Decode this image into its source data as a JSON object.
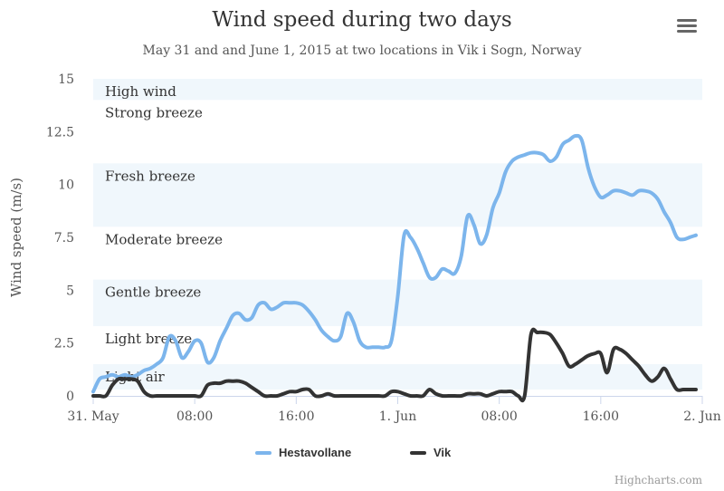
{
  "header": {
    "title": "Wind speed during two days",
    "subtitle": "May 31 and and June 1, 2015 at two locations in Vik i Sogn, Norway",
    "menu_icon": "hamburger-menu-icon"
  },
  "credits": "Highcharts.com",
  "colors": {
    "hestavollane": "#7cb5ec",
    "vik": "#333333",
    "band": "#f0f7fc",
    "axis": "#ccd6eb",
    "text": "#333333",
    "label": "#555555"
  },
  "chart_data": {
    "type": "line",
    "title": "Wind speed during two days",
    "subtitle": "May 31 and and June 1, 2015 at two locations in Vik i Sogn, Norway",
    "xlabel": "",
    "ylabel": "Wind speed (m/s)",
    "x_unit": "hours since 31. May 00:00",
    "xlim": [
      0,
      48
    ],
    "ylim": [
      0,
      15
    ],
    "xticks": [
      {
        "x": 0,
        "label": "31. May"
      },
      {
        "x": 8,
        "label": "08:00"
      },
      {
        "x": 16,
        "label": "16:00"
      },
      {
        "x": 24,
        "label": "1. Jun"
      },
      {
        "x": 32,
        "label": "08:00"
      },
      {
        "x": 40,
        "label": "16:00"
      },
      {
        "x": 48,
        "label": "2. Jun"
      }
    ],
    "yticks": [
      {
        "y": 0,
        "label": "0"
      },
      {
        "y": 2.5,
        "label": "2.5"
      },
      {
        "y": 5,
        "label": "5"
      },
      {
        "y": 7.5,
        "label": "7.5"
      },
      {
        "y": 10,
        "label": "10"
      },
      {
        "y": 12.5,
        "label": "12.5"
      },
      {
        "y": 15,
        "label": "15"
      }
    ],
    "bands": [
      {
        "from": 0.3,
        "to": 1.5,
        "label": "Light air",
        "shaded": true
      },
      {
        "from": 1.5,
        "to": 3.3,
        "label": "Light breeze",
        "shaded": false
      },
      {
        "from": 3.3,
        "to": 5.5,
        "label": "Gentle breeze",
        "shaded": true
      },
      {
        "from": 5.5,
        "to": 8,
        "label": "Moderate breeze",
        "shaded": false
      },
      {
        "from": 8,
        "to": 11,
        "label": "Fresh breeze",
        "shaded": true
      },
      {
        "from": 11,
        "to": 14,
        "label": "Strong breeze",
        "shaded": false
      },
      {
        "from": 14,
        "to": 15,
        "label": "High wind",
        "shaded": true
      }
    ],
    "series": [
      {
        "name": "Hestavollane",
        "color": "#7cb5ec",
        "values": [
          [
            0.0,
            0.2
          ],
          [
            0.5,
            0.8
          ],
          [
            1.0,
            0.9
          ],
          [
            1.5,
            1.0
          ],
          [
            2.0,
            0.9
          ],
          [
            2.5,
            1.0
          ],
          [
            3.0,
            0.9
          ],
          [
            3.5,
            1.0
          ],
          [
            4.0,
            1.2
          ],
          [
            4.5,
            1.3
          ],
          [
            5.0,
            1.5
          ],
          [
            5.5,
            1.8
          ],
          [
            6.0,
            2.8
          ],
          [
            6.5,
            2.6
          ],
          [
            7.0,
            1.8
          ],
          [
            7.5,
            2.1
          ],
          [
            8.0,
            2.6
          ],
          [
            8.5,
            2.5
          ],
          [
            9.0,
            1.6
          ],
          [
            9.5,
            1.8
          ],
          [
            10.0,
            2.6
          ],
          [
            10.5,
            3.2
          ],
          [
            11.0,
            3.8
          ],
          [
            11.5,
            3.9
          ],
          [
            12.0,
            3.6
          ],
          [
            12.5,
            3.7
          ],
          [
            13.0,
            4.3
          ],
          [
            13.5,
            4.4
          ],
          [
            14.0,
            4.1
          ],
          [
            14.5,
            4.2
          ],
          [
            15.0,
            4.4
          ],
          [
            15.5,
            4.4
          ],
          [
            16.0,
            4.4
          ],
          [
            16.5,
            4.3
          ],
          [
            17.0,
            4.0
          ],
          [
            17.5,
            3.6
          ],
          [
            18.0,
            3.1
          ],
          [
            18.5,
            2.8
          ],
          [
            19.0,
            2.6
          ],
          [
            19.5,
            2.8
          ],
          [
            20.0,
            3.9
          ],
          [
            20.5,
            3.5
          ],
          [
            21.0,
            2.6
          ],
          [
            21.5,
            2.3
          ],
          [
            22.0,
            2.3
          ],
          [
            22.5,
            2.3
          ],
          [
            23.0,
            2.3
          ],
          [
            23.5,
            2.6
          ],
          [
            24.0,
            4.7
          ],
          [
            24.5,
            7.6
          ],
          [
            25.0,
            7.5
          ],
          [
            25.5,
            7.0
          ],
          [
            26.0,
            6.3
          ],
          [
            26.5,
            5.6
          ],
          [
            27.0,
            5.6
          ],
          [
            27.5,
            6.0
          ],
          [
            28.0,
            5.9
          ],
          [
            28.5,
            5.8
          ],
          [
            29.0,
            6.6
          ],
          [
            29.5,
            8.5
          ],
          [
            30.0,
            8.1
          ],
          [
            30.5,
            7.2
          ],
          [
            31.0,
            7.6
          ],
          [
            31.5,
            8.9
          ],
          [
            32.0,
            9.6
          ],
          [
            32.5,
            10.6
          ],
          [
            33.0,
            11.1
          ],
          [
            33.5,
            11.3
          ],
          [
            34.0,
            11.4
          ],
          [
            34.5,
            11.5
          ],
          [
            35.0,
            11.5
          ],
          [
            35.5,
            11.4
          ],
          [
            36.0,
            11.1
          ],
          [
            36.5,
            11.3
          ],
          [
            37.0,
            11.9
          ],
          [
            37.5,
            12.1
          ],
          [
            38.0,
            12.3
          ],
          [
            38.5,
            12.1
          ],
          [
            39.0,
            10.8
          ],
          [
            39.5,
            9.9
          ],
          [
            40.0,
            9.4
          ],
          [
            40.5,
            9.5
          ],
          [
            41.0,
            9.7
          ],
          [
            41.5,
            9.7
          ],
          [
            42.0,
            9.6
          ],
          [
            42.5,
            9.5
          ],
          [
            43.0,
            9.7
          ],
          [
            43.5,
            9.7
          ],
          [
            44.0,
            9.6
          ],
          [
            44.5,
            9.3
          ],
          [
            45.0,
            8.7
          ],
          [
            45.5,
            8.2
          ],
          [
            46.0,
            7.5
          ],
          [
            46.5,
            7.4
          ],
          [
            47.0,
            7.5
          ],
          [
            47.5,
            7.6
          ]
        ]
      },
      {
        "name": "Vik",
        "color": "#333333",
        "values": [
          [
            0.0,
            0.0
          ],
          [
            0.5,
            0.0
          ],
          [
            1.0,
            0.0
          ],
          [
            1.5,
            0.5
          ],
          [
            2.0,
            0.8
          ],
          [
            2.5,
            0.8
          ],
          [
            3.0,
            0.8
          ],
          [
            3.5,
            0.7
          ],
          [
            4.0,
            0.2
          ],
          [
            4.5,
            0.0
          ],
          [
            5.0,
            0.0
          ],
          [
            5.5,
            0.0
          ],
          [
            6.0,
            0.0
          ],
          [
            6.5,
            0.0
          ],
          [
            7.0,
            0.0
          ],
          [
            7.5,
            0.0
          ],
          [
            8.0,
            0.0
          ],
          [
            8.5,
            0.0
          ],
          [
            9.0,
            0.5
          ],
          [
            9.5,
            0.6
          ],
          [
            10.0,
            0.6
          ],
          [
            10.5,
            0.7
          ],
          [
            11.0,
            0.7
          ],
          [
            11.5,
            0.7
          ],
          [
            12.0,
            0.6
          ],
          [
            12.5,
            0.4
          ],
          [
            13.0,
            0.2
          ],
          [
            13.5,
            0.0
          ],
          [
            14.0,
            0.0
          ],
          [
            14.5,
            0.0
          ],
          [
            15.0,
            0.1
          ],
          [
            15.5,
            0.2
          ],
          [
            16.0,
            0.2
          ],
          [
            16.5,
            0.3
          ],
          [
            17.0,
            0.3
          ],
          [
            17.5,
            0.0
          ],
          [
            18.0,
            0.0
          ],
          [
            18.5,
            0.1
          ],
          [
            19.0,
            0.0
          ],
          [
            19.5,
            0.0
          ],
          [
            20.0,
            0.0
          ],
          [
            20.5,
            0.0
          ],
          [
            21.0,
            0.0
          ],
          [
            21.5,
            0.0
          ],
          [
            22.0,
            0.0
          ],
          [
            22.5,
            0.0
          ],
          [
            23.0,
            0.0
          ],
          [
            23.5,
            0.2
          ],
          [
            24.0,
            0.2
          ],
          [
            24.5,
            0.1
          ],
          [
            25.0,
            0.0
          ],
          [
            25.5,
            0.0
          ],
          [
            26.0,
            0.0
          ],
          [
            26.5,
            0.3
          ],
          [
            27.0,
            0.1
          ],
          [
            27.5,
            0.0
          ],
          [
            28.0,
            0.0
          ],
          [
            28.5,
            0.0
          ],
          [
            29.0,
            0.0
          ],
          [
            29.5,
            0.1
          ],
          [
            30.0,
            0.1
          ],
          [
            30.5,
            0.1
          ],
          [
            31.0,
            0.0
          ],
          [
            31.5,
            0.1
          ],
          [
            32.0,
            0.2
          ],
          [
            32.5,
            0.2
          ],
          [
            33.0,
            0.2
          ],
          [
            33.5,
            0.0
          ],
          [
            34.0,
            0.0
          ],
          [
            34.5,
            2.9
          ],
          [
            35.0,
            3.0
          ],
          [
            35.5,
            3.0
          ],
          [
            36.0,
            2.9
          ],
          [
            36.5,
            2.5
          ],
          [
            37.0,
            2.0
          ],
          [
            37.5,
            1.4
          ],
          [
            38.0,
            1.5
          ],
          [
            38.5,
            1.7
          ],
          [
            39.0,
            1.9
          ],
          [
            39.5,
            2.0
          ],
          [
            40.0,
            2.0
          ],
          [
            40.5,
            1.1
          ],
          [
            41.0,
            2.2
          ],
          [
            41.5,
            2.2
          ],
          [
            42.0,
            2.0
          ],
          [
            42.5,
            1.7
          ],
          [
            43.0,
            1.4
          ],
          [
            43.5,
            1.0
          ],
          [
            44.0,
            0.7
          ],
          [
            44.5,
            0.9
          ],
          [
            45.0,
            1.3
          ],
          [
            45.5,
            0.8
          ],
          [
            46.0,
            0.3
          ],
          [
            46.5,
            0.3
          ],
          [
            47.0,
            0.3
          ],
          [
            47.5,
            0.3
          ]
        ]
      }
    ],
    "legend_position": "bottom-center",
    "grid": false
  }
}
